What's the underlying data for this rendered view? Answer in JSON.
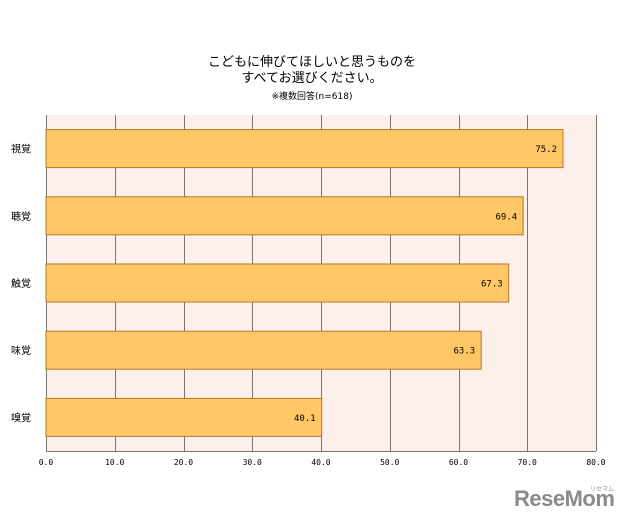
{
  "title_lines": [
    "こどもに伸びてほしいと思うものを",
    "すべてお選びください。"
  ],
  "subtitle": "※複数回答(n=618)",
  "logo_text": "ReseMom",
  "logo_kana": "リセマム",
  "colors": {
    "plot_bg": "#fdefea",
    "bar_fill": "#ffc766",
    "bar_edge": "#b07a2a",
    "grid": "#777777"
  },
  "chart_data": {
    "type": "bar",
    "orientation": "horizontal",
    "categories": [
      "視覚",
      "聴覚",
      "触覚",
      "味覚",
      "嗅覚"
    ],
    "values": [
      75.2,
      69.4,
      67.3,
      63.3,
      40.1
    ],
    "value_labels": [
      "75.2",
      "69.4",
      "67.3",
      "63.3",
      "40.1"
    ],
    "xlim": [
      0,
      80
    ],
    "ticks": [
      "0.0",
      "10.0",
      "20.0",
      "30.0",
      "40.0",
      "50.0",
      "60.0",
      "70.0",
      "80.0"
    ],
    "title": "こどもに伸びてほしいと思うものを すべてお選びください。",
    "subtitle": "※複数回答(n=618)",
    "xlabel": "",
    "ylabel": "",
    "grid": true,
    "legend": "none"
  }
}
